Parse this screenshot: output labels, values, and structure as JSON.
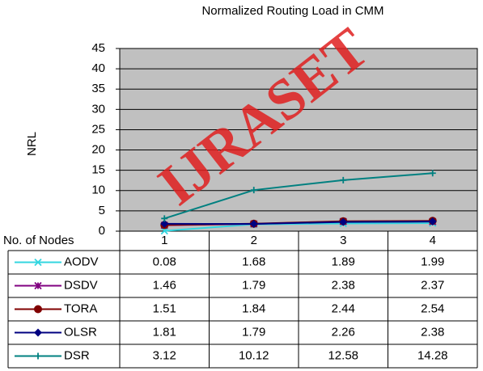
{
  "chart_data": {
    "type": "line",
    "title": "Normalized Routing Load  in  CMM",
    "y_label": "NRL",
    "x_label": "No. of Nodes",
    "categories": [
      "1",
      "2",
      "3",
      "4"
    ],
    "ylim": [
      0,
      45
    ],
    "yticks": [
      0,
      5,
      10,
      15,
      20,
      25,
      30,
      35,
      40,
      45
    ],
    "grid": true,
    "background": "#c0c0c0",
    "series": [
      {
        "name": "AODV",
        "color": "#33d6e0",
        "marker": "x",
        "values": [
          0.08,
          1.68,
          1.89,
          1.99
        ]
      },
      {
        "name": "DSDV",
        "color": "#800080",
        "marker": "asterisk",
        "values": [
          1.46,
          1.79,
          2.38,
          2.37
        ]
      },
      {
        "name": "TORA",
        "color": "#800000",
        "marker": "circle",
        "values": [
          1.51,
          1.84,
          2.44,
          2.54
        ]
      },
      {
        "name": "OLSR",
        "color": "#000080",
        "marker": "diamond",
        "values": [
          1.81,
          1.79,
          2.26,
          2.38
        ]
      },
      {
        "name": "DSR",
        "color": "#008080",
        "marker": "plus",
        "values": [
          3.12,
          10.12,
          12.58,
          14.28
        ]
      }
    ]
  },
  "watermark": "IJRASET"
}
